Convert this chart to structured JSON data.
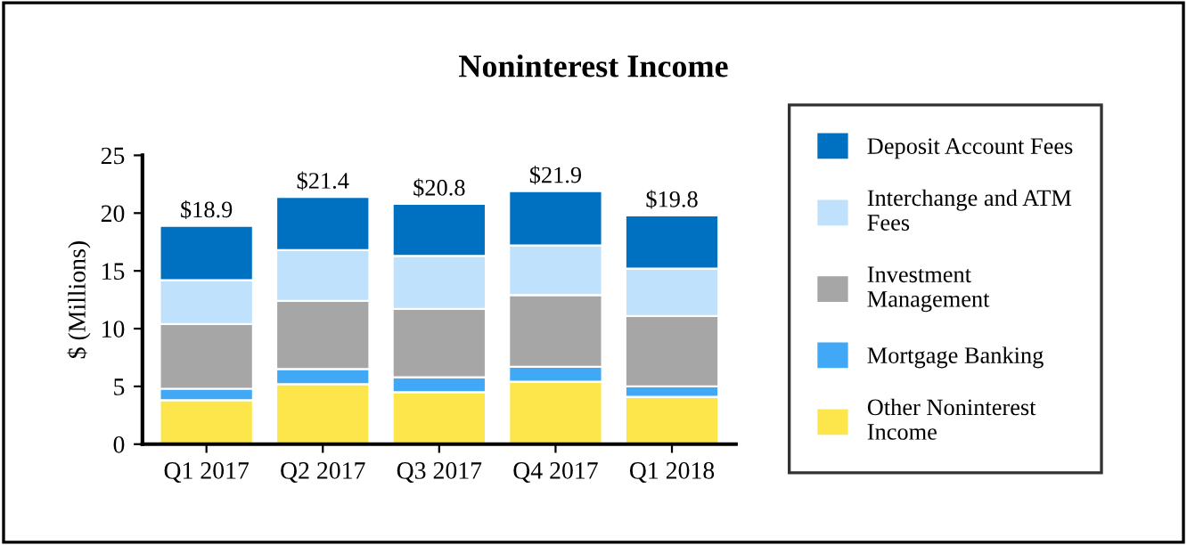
{
  "chart_data": {
    "type": "bar",
    "title": "Noninterest Income",
    "ylabel": "$ (Millions)",
    "categories": [
      "Q1 2017",
      "Q2 2017",
      "Q3 2017",
      "Q4 2017",
      "Q1 2018"
    ],
    "stacked": true,
    "series": [
      {
        "name": "Other Noninterest Income",
        "color": "#fde64b",
        "values": [
          3.8,
          5.2,
          4.5,
          5.4,
          4.1
        ]
      },
      {
        "name": "Mortgage Banking",
        "color": "#41a8f5",
        "values": [
          1.0,
          1.3,
          1.3,
          1.3,
          0.9
        ]
      },
      {
        "name": "Investment Management",
        "color": "#a6a6a6",
        "values": [
          5.6,
          5.9,
          5.9,
          6.2,
          6.1
        ]
      },
      {
        "name": "Interchange and ATM Fees",
        "color": "#bfe1fb",
        "values": [
          3.8,
          4.4,
          4.6,
          4.3,
          4.1
        ]
      },
      {
        "name": "Deposit Account Fees",
        "color": "#0070c0",
        "values": [
          4.7,
          4.6,
          4.5,
          4.7,
          4.6
        ]
      }
    ],
    "totals": [
      "$18.9",
      "$21.4",
      "$20.8",
      "$21.9",
      "$19.8"
    ],
    "ylim": [
      0,
      25
    ],
    "yticks": [
      0,
      5,
      10,
      15,
      20,
      25
    ],
    "grid": false,
    "legend": "right"
  }
}
